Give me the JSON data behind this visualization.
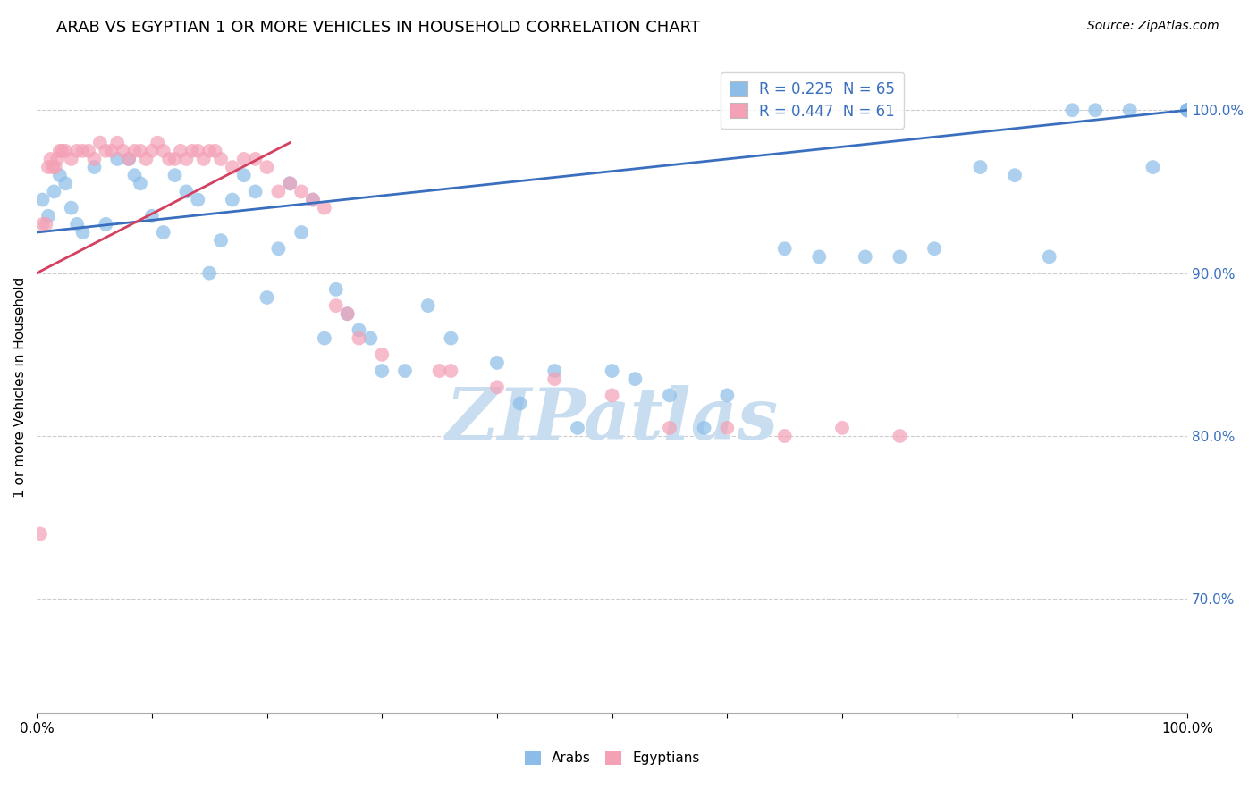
{
  "title": "ARAB VS EGYPTIAN 1 OR MORE VEHICLES IN HOUSEHOLD CORRELATION CHART",
  "source": "Source: ZipAtlas.com",
  "ylabel": "1 or more Vehicles in Household",
  "xlim": [
    0.0,
    100.0
  ],
  "ylim": [
    63.0,
    103.0
  ],
  "arab_color": "#8bbde8",
  "egyptian_color": "#f4a0b5",
  "arab_line_color": "#3a6fbf",
  "egyptian_line_color": "#d44060",
  "watermark": "ZIPatlas",
  "arab_scatter_x": [
    0.5,
    1.0,
    1.5,
    2.0,
    2.5,
    3.0,
    3.5,
    4.0,
    5.0,
    6.0,
    7.0,
    8.0,
    8.5,
    9.0,
    10.0,
    11.0,
    12.0,
    13.0,
    14.0,
    15.0,
    16.0,
    17.0,
    18.0,
    19.0,
    20.0,
    21.0,
    22.0,
    23.0,
    24.0,
    25.0,
    26.0,
    27.0,
    28.0,
    29.0,
    30.0,
    32.0,
    34.0,
    36.0,
    40.0,
    42.0,
    45.0,
    47.0,
    50.0,
    52.0,
    55.0,
    58.0,
    60.0,
    65.0,
    68.0,
    72.0,
    75.0,
    78.0,
    82.0,
    85.0,
    88.0,
    90.0,
    92.0,
    95.0,
    97.0,
    100.0,
    100.0,
    100.0,
    100.0,
    100.0,
    100.0
  ],
  "arab_scatter_y": [
    94.5,
    93.5,
    95.0,
    96.0,
    95.5,
    94.0,
    93.0,
    92.5,
    96.5,
    93.0,
    97.0,
    97.0,
    96.0,
    95.5,
    93.5,
    92.5,
    96.0,
    95.0,
    94.5,
    90.0,
    92.0,
    94.5,
    96.0,
    95.0,
    88.5,
    91.5,
    95.5,
    92.5,
    94.5,
    86.0,
    89.0,
    87.5,
    86.5,
    86.0,
    84.0,
    84.0,
    88.0,
    86.0,
    84.5,
    82.0,
    84.0,
    80.5,
    84.0,
    83.5,
    82.5,
    80.5,
    82.5,
    91.5,
    91.0,
    91.0,
    91.0,
    91.5,
    96.5,
    96.0,
    91.0,
    100.0,
    100.0,
    100.0,
    96.5,
    100.0,
    100.0,
    100.0,
    100.0,
    100.0,
    100.0
  ],
  "egyptian_scatter_x": [
    0.3,
    0.5,
    0.8,
    1.0,
    1.2,
    1.4,
    1.6,
    1.8,
    2.0,
    2.2,
    2.5,
    3.0,
    3.5,
    4.0,
    4.5,
    5.0,
    5.5,
    6.0,
    6.5,
    7.0,
    7.5,
    8.0,
    8.5,
    9.0,
    9.5,
    10.0,
    10.5,
    11.0,
    11.5,
    12.0,
    12.5,
    13.0,
    13.5,
    14.0,
    14.5,
    15.0,
    15.5,
    16.0,
    17.0,
    18.0,
    19.0,
    20.0,
    21.0,
    22.0,
    23.0,
    24.0,
    25.0,
    26.0,
    27.0,
    28.0,
    30.0,
    35.0,
    36.0,
    40.0,
    45.0,
    50.0,
    55.0,
    60.0,
    65.0,
    70.0,
    75.0
  ],
  "egyptian_scatter_y": [
    74.0,
    93.0,
    93.0,
    96.5,
    97.0,
    96.5,
    96.5,
    97.0,
    97.5,
    97.5,
    97.5,
    97.0,
    97.5,
    97.5,
    97.5,
    97.0,
    98.0,
    97.5,
    97.5,
    98.0,
    97.5,
    97.0,
    97.5,
    97.5,
    97.0,
    97.5,
    98.0,
    97.5,
    97.0,
    97.0,
    97.5,
    97.0,
    97.5,
    97.5,
    97.0,
    97.5,
    97.5,
    97.0,
    96.5,
    97.0,
    97.0,
    96.5,
    95.0,
    95.5,
    95.0,
    94.5,
    94.0,
    88.0,
    87.5,
    86.0,
    85.0,
    84.0,
    84.0,
    83.0,
    83.5,
    82.5,
    80.5,
    80.5,
    80.0,
    80.5,
    80.0
  ],
  "arab_trendline_x": [
    0.0,
    100.0
  ],
  "arab_trendline_y": [
    92.5,
    100.0
  ],
  "egyptian_trendline_x": [
    0.0,
    22.0
  ],
  "egyptian_trendline_y": [
    90.0,
    98.0
  ],
  "grid_color": "#cccccc",
  "background_color": "#ffffff",
  "title_fontsize": 13,
  "label_fontsize": 11,
  "tick_fontsize": 11,
  "source_fontsize": 10,
  "watermark_color": "#c8ddf0",
  "watermark_fontsize": 58,
  "ytick_values": [
    70,
    80,
    90,
    100
  ],
  "ytick_labels": [
    "70.0%",
    "80.0%",
    "90.0%",
    "100.0%"
  ],
  "xtick_positions": [
    0,
    10,
    20,
    30,
    40,
    50,
    60,
    70,
    80,
    90,
    100
  ],
  "xtick_labels": [
    "0.0%",
    "",
    "",
    "",
    "",
    "",
    "",
    "",
    "",
    "",
    "100.0%"
  ]
}
